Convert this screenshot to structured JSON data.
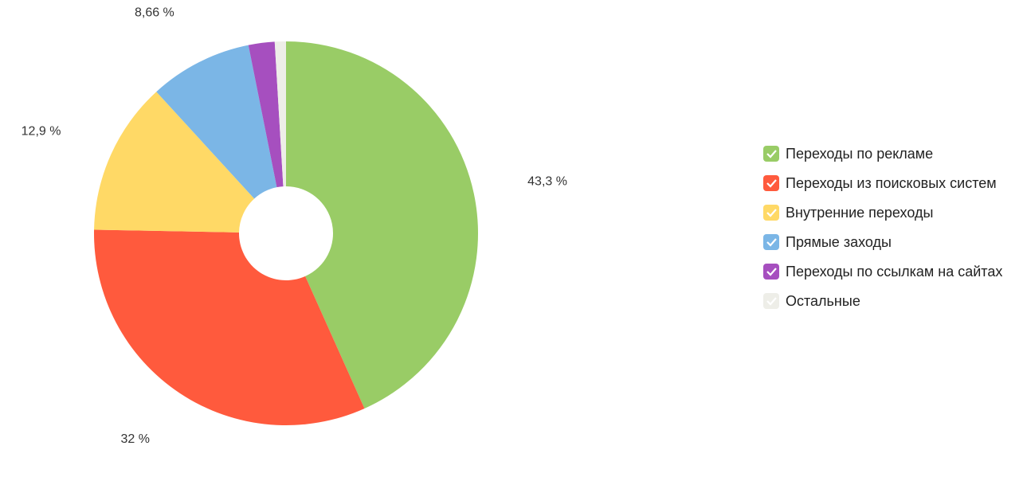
{
  "chart_data": {
    "type": "donut",
    "categories": [
      "Переходы по рекламе",
      "Переходы из поисковых систем",
      "Внутренние переходы",
      "Прямые заходы",
      "Переходы по ссылкам на сайтах",
      "Остальные"
    ],
    "values": [
      43.3,
      32,
      12.9,
      8.66,
      2.2,
      0.94
    ],
    "value_labels": [
      "43,3 %",
      "32 %",
      "12,9 %",
      "8,66 %",
      null,
      null
    ],
    "colors": [
      "#99cc66",
      "#ff5a3d",
      "#ffd966",
      "#7bb6e6",
      "#a64fbf",
      "#eeeee8"
    ]
  }
}
